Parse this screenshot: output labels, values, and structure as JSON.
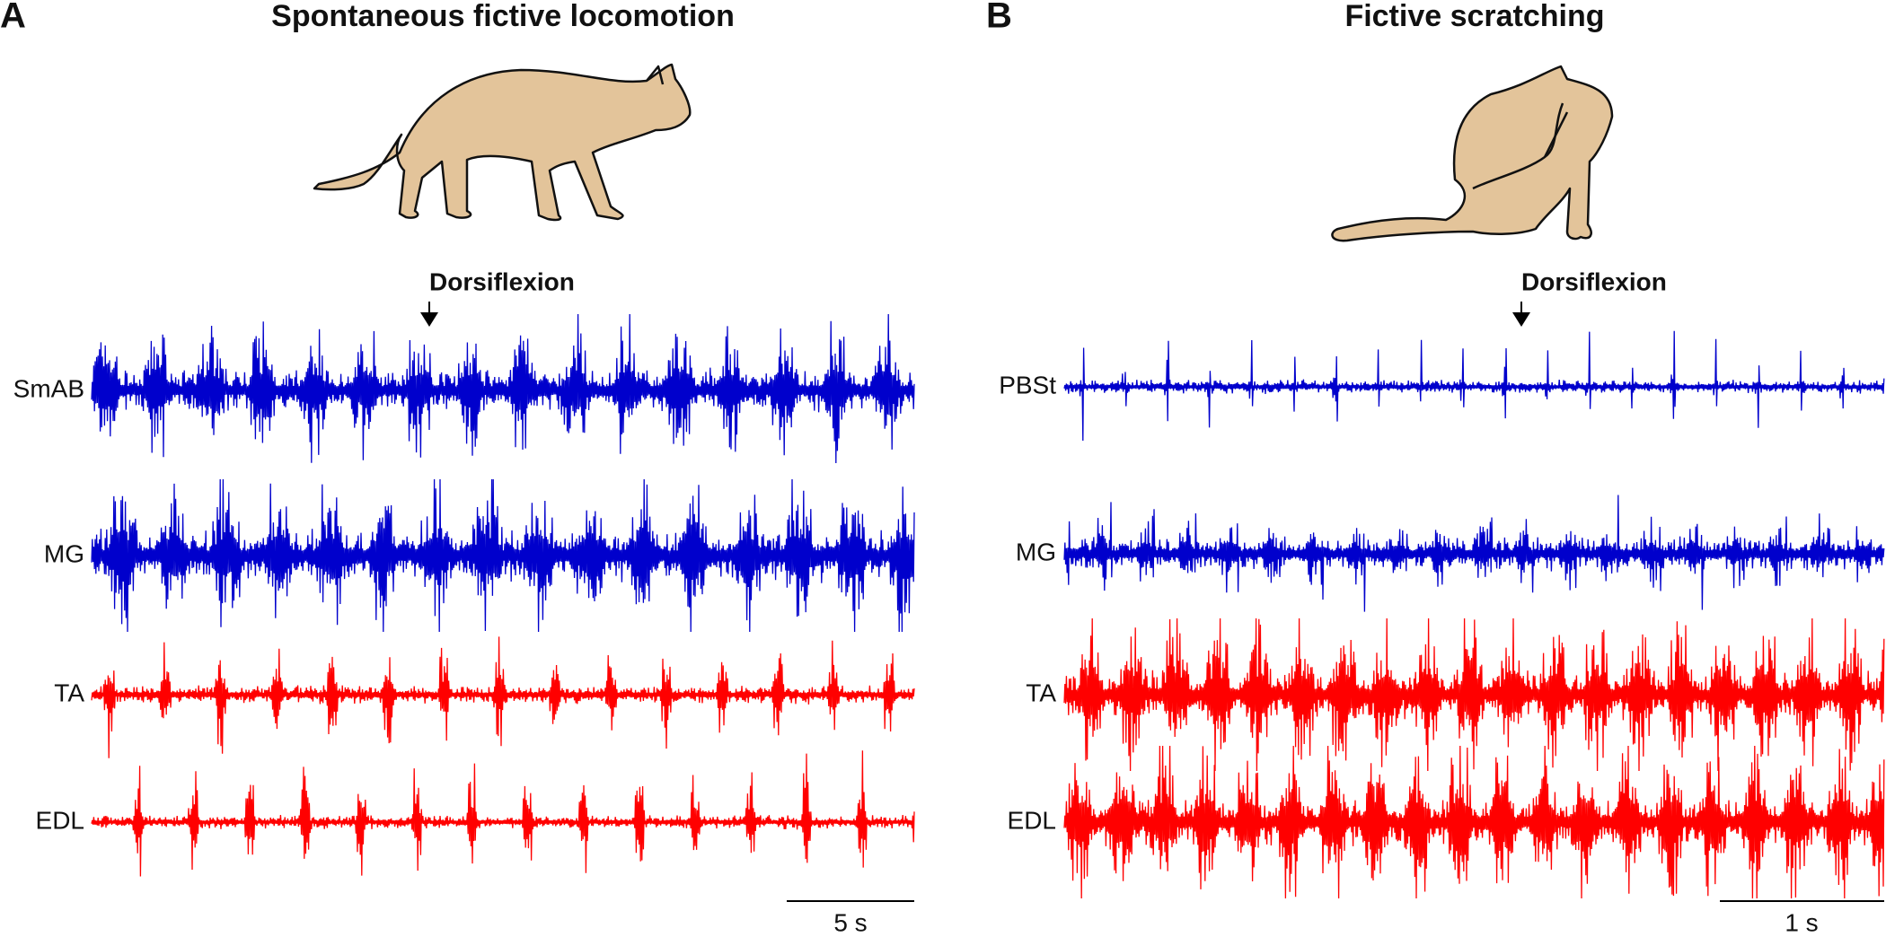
{
  "panels": [
    {
      "letter": "A",
      "title": "Spontaneous fictive locomotion",
      "annotation": "Dorsiflexion",
      "traces": [
        {
          "label": "SmAB",
          "color": "#0000cc"
        },
        {
          "label": "MG",
          "color": "#0000cc"
        },
        {
          "label": "TA",
          "color": "#ff0000"
        },
        {
          "label": "EDL",
          "color": "#ff0000"
        }
      ],
      "scale_bar": "5 s"
    },
    {
      "letter": "B",
      "title": "Fictive scratching",
      "annotation": "Dorsiflexion",
      "traces": [
        {
          "label": "PBSt",
          "color": "#0000cc"
        },
        {
          "label": "MG",
          "color": "#0000cc"
        },
        {
          "label": "TA",
          "color": "#ff0000"
        },
        {
          "label": "EDL",
          "color": "#ff0000"
        }
      ],
      "scale_bar": "1 s"
    }
  ]
}
